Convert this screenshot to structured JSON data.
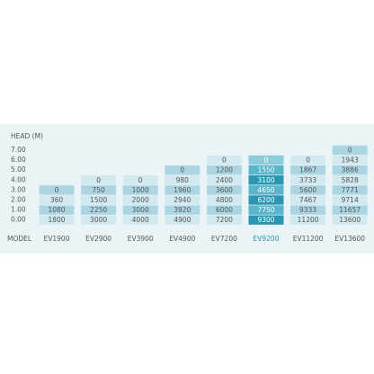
{
  "header": {
    "title": "HEAD  (M)",
    "model_label": "MODEL"
  },
  "table": {
    "head_levels": [
      "7.00",
      "6.00",
      "5.00",
      "4.00",
      "3.00",
      "2.00",
      "1.00",
      "0.00"
    ],
    "columns": [
      {
        "model": "EV1900",
        "values": [
          0,
          360,
          1080,
          1800
        ]
      },
      {
        "model": "EV2900",
        "values": [
          0,
          750,
          1500,
          2250,
          3000
        ]
      },
      {
        "model": "EV3900",
        "values": [
          0,
          1000,
          2000,
          3000,
          4000
        ]
      },
      {
        "model": "EV4900",
        "values": [
          0,
          980,
          1960,
          2940,
          3920,
          4900
        ]
      },
      {
        "model": "EV7200",
        "values": [
          0,
          1200,
          2400,
          3600,
          4800,
          6000,
          7200
        ]
      },
      {
        "model": "EV9200",
        "values": [
          0,
          1550,
          3100,
          4650,
          6200,
          7750,
          9300
        ],
        "highlighted": true
      },
      {
        "model": "EV11200",
        "values": [
          0,
          1867,
          3733,
          5600,
          7467,
          9333,
          11200
        ]
      },
      {
        "model": "EV13600",
        "values": [
          0,
          1943,
          3886,
          5828,
          7771,
          9714,
          11657,
          13600
        ]
      }
    ]
  }
}
